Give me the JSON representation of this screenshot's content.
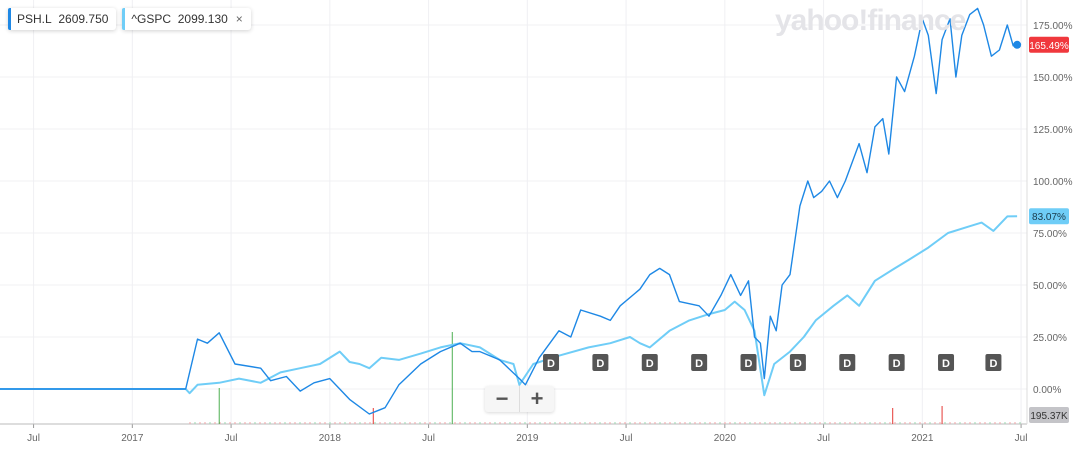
{
  "legend": [
    {
      "symbol": "PSH.L",
      "value": "2609.750",
      "color": "#1e88e5"
    },
    {
      "symbol": "^GSPC",
      "value": "2099.130",
      "color": "#6fcdf7",
      "close": "×"
    }
  ],
  "watermark": "yahoo!finance",
  "zoom": {
    "minus": "−",
    "plus": "+"
  },
  "chart_data": {
    "type": "line",
    "xlabel": "",
    "ylabel": "",
    "ylim": [
      -10,
      185
    ],
    "yticks": [
      "0.00%",
      "25.00%",
      "50.00%",
      "75.00%",
      "100.00%",
      "125.00%",
      "150.00%",
      "175.00%"
    ],
    "ytick_values": [
      0,
      25,
      50,
      75,
      100,
      125,
      150,
      175
    ],
    "xticks": [
      {
        "t": 2016.5,
        "label": "Jul"
      },
      {
        "t": 2017.0,
        "label": "2017"
      },
      {
        "t": 2017.5,
        "label": "Jul"
      },
      {
        "t": 2018.0,
        "label": "2018"
      },
      {
        "t": 2018.5,
        "label": "Jul"
      },
      {
        "t": 2019.0,
        "label": "2019"
      },
      {
        "t": 2019.5,
        "label": "Jul"
      },
      {
        "t": 2020.0,
        "label": "2020"
      },
      {
        "t": 2020.5,
        "label": "Jul"
      },
      {
        "t": 2021.0,
        "label": "2021"
      },
      {
        "t": 2021.5,
        "label": "Jul"
      }
    ],
    "series": [
      {
        "name": "PSH.L",
        "color": "#1e88e5",
        "last_label": "165.49%",
        "last_label_color": "#f0383d",
        "points": [
          [
            2016.33,
            0
          ],
          [
            2017.27,
            0
          ],
          [
            2017.33,
            24
          ],
          [
            2017.38,
            22
          ],
          [
            2017.44,
            27
          ],
          [
            2017.52,
            12
          ],
          [
            2017.65,
            10
          ],
          [
            2017.7,
            4
          ],
          [
            2017.78,
            6
          ],
          [
            2017.85,
            -1
          ],
          [
            2017.92,
            3
          ],
          [
            2018.0,
            5
          ],
          [
            2018.1,
            -5
          ],
          [
            2018.2,
            -12
          ],
          [
            2018.28,
            -9
          ],
          [
            2018.35,
            2
          ],
          [
            2018.46,
            12
          ],
          [
            2018.56,
            18
          ],
          [
            2018.66,
            22
          ],
          [
            2018.72,
            18
          ],
          [
            2018.76,
            18
          ],
          [
            2018.86,
            14
          ],
          [
            2018.96,
            5
          ],
          [
            2018.99,
            2
          ],
          [
            2019.06,
            15
          ],
          [
            2019.16,
            28
          ],
          [
            2019.22,
            25
          ],
          [
            2019.27,
            38
          ],
          [
            2019.37,
            35
          ],
          [
            2019.42,
            33
          ],
          [
            2019.47,
            40
          ],
          [
            2019.57,
            48
          ],
          [
            2019.62,
            55
          ],
          [
            2019.67,
            58
          ],
          [
            2019.72,
            55
          ],
          [
            2019.77,
            42
          ],
          [
            2019.87,
            40
          ],
          [
            2019.92,
            35
          ],
          [
            2019.98,
            45
          ],
          [
            2020.03,
            55
          ],
          [
            2020.08,
            45
          ],
          [
            2020.12,
            52
          ],
          [
            2020.15,
            25
          ],
          [
            2020.18,
            22
          ],
          [
            2020.2,
            5
          ],
          [
            2020.23,
            35
          ],
          [
            2020.26,
            28
          ],
          [
            2020.29,
            50
          ],
          [
            2020.33,
            55
          ],
          [
            2020.38,
            88
          ],
          [
            2020.42,
            100
          ],
          [
            2020.45,
            92
          ],
          [
            2020.49,
            95
          ],
          [
            2020.53,
            100
          ],
          [
            2020.57,
            92
          ],
          [
            2020.61,
            100
          ],
          [
            2020.68,
            118
          ],
          [
            2020.72,
            104
          ],
          [
            2020.76,
            126
          ],
          [
            2020.8,
            130
          ],
          [
            2020.83,
            113
          ],
          [
            2020.87,
            150
          ],
          [
            2020.91,
            143
          ],
          [
            2020.96,
            160
          ],
          [
            2021.0,
            178
          ],
          [
            2021.03,
            170
          ],
          [
            2021.07,
            142
          ],
          [
            2021.1,
            168
          ],
          [
            2021.14,
            178
          ],
          [
            2021.17,
            150
          ],
          [
            2021.2,
            170
          ],
          [
            2021.24,
            180
          ],
          [
            2021.28,
            183
          ],
          [
            2021.31,
            175
          ],
          [
            2021.35,
            160
          ],
          [
            2021.39,
            163
          ],
          [
            2021.43,
            175
          ],
          [
            2021.46,
            165
          ],
          [
            2021.48,
            165.49
          ]
        ]
      },
      {
        "name": "^GSPC",
        "color": "#6fcdf7",
        "last_label": "83.07%",
        "last_label_color": "#6fcdf7",
        "points": [
          [
            2016.33,
            0
          ],
          [
            2017.27,
            0
          ],
          [
            2017.29,
            -2
          ],
          [
            2017.33,
            2
          ],
          [
            2017.44,
            3
          ],
          [
            2017.54,
            5
          ],
          [
            2017.65,
            3
          ],
          [
            2017.75,
            8
          ],
          [
            2017.85,
            10
          ],
          [
            2017.95,
            12
          ],
          [
            2018.05,
            18
          ],
          [
            2018.1,
            13
          ],
          [
            2018.15,
            12
          ],
          [
            2018.2,
            10
          ],
          [
            2018.26,
            15
          ],
          [
            2018.35,
            14
          ],
          [
            2018.46,
            17
          ],
          [
            2018.56,
            20
          ],
          [
            2018.66,
            22
          ],
          [
            2018.76,
            20
          ],
          [
            2018.86,
            14
          ],
          [
            2018.93,
            12
          ],
          [
            2018.96,
            2
          ],
          [
            2019.03,
            12
          ],
          [
            2019.16,
            16
          ],
          [
            2019.31,
            20
          ],
          [
            2019.42,
            22
          ],
          [
            2019.52,
            25
          ],
          [
            2019.57,
            22
          ],
          [
            2019.62,
            20
          ],
          [
            2019.72,
            28
          ],
          [
            2019.82,
            33
          ],
          [
            2019.92,
            36
          ],
          [
            2020.0,
            38
          ],
          [
            2020.05,
            42
          ],
          [
            2020.1,
            38
          ],
          [
            2020.15,
            28
          ],
          [
            2020.2,
            -3
          ],
          [
            2020.25,
            12
          ],
          [
            2020.33,
            18
          ],
          [
            2020.4,
            25
          ],
          [
            2020.46,
            33
          ],
          [
            2020.55,
            40
          ],
          [
            2020.62,
            45
          ],
          [
            2020.68,
            40
          ],
          [
            2020.76,
            52
          ],
          [
            2020.86,
            58
          ],
          [
            2020.93,
            62
          ],
          [
            2021.03,
            68
          ],
          [
            2021.13,
            75
          ],
          [
            2021.23,
            78
          ],
          [
            2021.3,
            80
          ],
          [
            2021.36,
            76
          ],
          [
            2021.43,
            83
          ],
          [
            2021.48,
            83.07
          ]
        ]
      }
    ],
    "dividends": [
      {
        "t": 2019.12,
        "label": "D"
      },
      {
        "t": 2019.37,
        "label": "D"
      },
      {
        "t": 2019.62,
        "label": "D"
      },
      {
        "t": 2019.87,
        "label": "D"
      },
      {
        "t": 2020.12,
        "label": "D"
      },
      {
        "t": 2020.37,
        "label": "D"
      },
      {
        "t": 2020.62,
        "label": "D"
      },
      {
        "t": 2020.87,
        "label": "D"
      },
      {
        "t": 2021.12,
        "label": "D"
      },
      {
        "t": 2021.36,
        "label": "D"
      }
    ],
    "volume_label": "195.37K",
    "volume_spikes": [
      {
        "t": 2017.44,
        "rel": 0.9,
        "color": "#4caf50"
      },
      {
        "t": 2018.22,
        "rel": 0.4,
        "color": "#e53935"
      },
      {
        "t": 2018.62,
        "rel": 2.3,
        "color": "#4caf50"
      },
      {
        "t": 2020.85,
        "rel": 0.4,
        "color": "#e53935"
      },
      {
        "t": 2021.1,
        "rel": 0.45,
        "color": "#e53935"
      }
    ]
  }
}
